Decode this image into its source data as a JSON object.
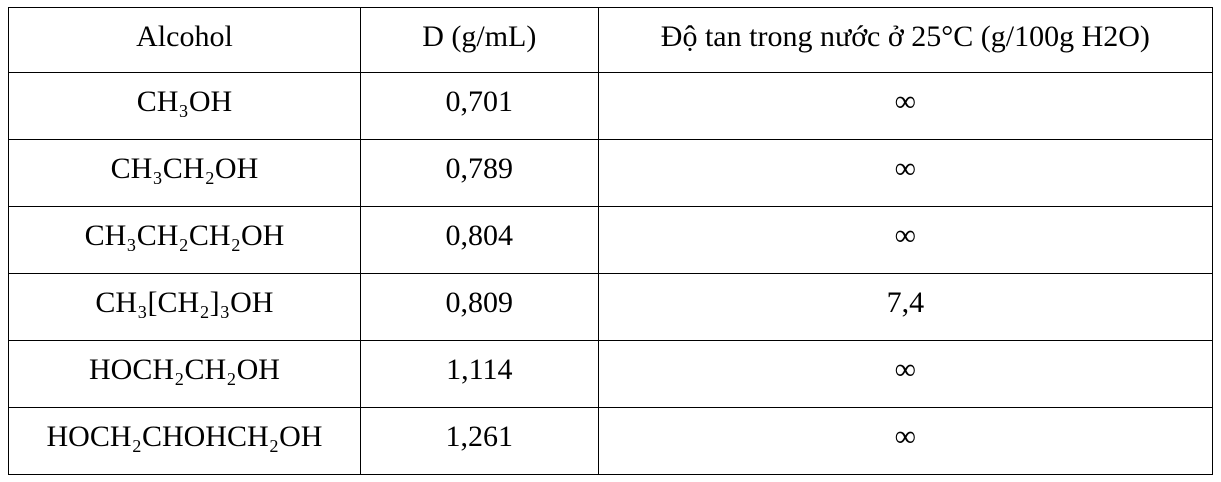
{
  "table": {
    "header": [
      "Alcohol",
      "D (g/mL)",
      "Độ tan trong nước ở 25°C (g/100g H2O)"
    ],
    "rows": [
      [
        "CH₃OH",
        "0,701",
        "∞"
      ],
      [
        "CH₃CH₂OH",
        "0,789",
        "∞"
      ],
      [
        "CH₃CH₂CH₂OH",
        "0,804",
        "∞"
      ],
      [
        "CH₃[CH₂]₃OH",
        "0,809",
        "7,4"
      ],
      [
        "HOCH₂CH₂OH",
        "1,114",
        "∞"
      ],
      [
        "HOCH₂CHOHCH₂OH",
        "1,261",
        "∞"
      ]
    ]
  }
}
